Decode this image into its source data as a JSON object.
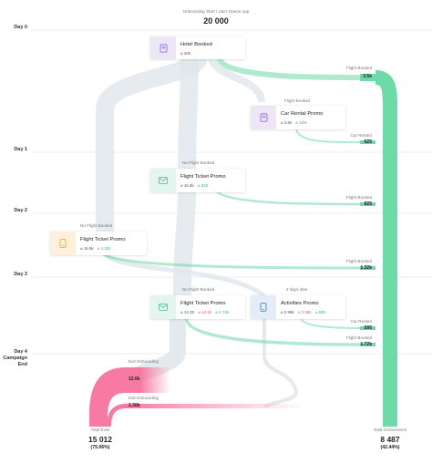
{
  "header": {
    "caption": "Onboarding Start / User Opens App",
    "total": "20 000"
  },
  "days": [
    "Day 0",
    "Day 1",
    "Day 2",
    "Day 3",
    "Day 4",
    "Campaign",
    "End"
  ],
  "cards": {
    "hotel": {
      "title": "Hotel Booked",
      "stat1": "⌀ 20k",
      "icon": "hotel-icon",
      "color": "#ece6f7",
      "stroke": "#8a73c9"
    },
    "car": {
      "title": "Car Rental Promo",
      "stat1": "⌀ 3.5k",
      "stat2": "⌀ 12%",
      "icon": "car-icon",
      "color": "#ece6f7",
      "stroke": "#8a73c9"
    },
    "flight1": {
      "title": "Flight Ticket Promo",
      "stat1": "⌀ 16.5k",
      "stat2": "⌀ 825",
      "icon": "mail-icon",
      "color": "#e3f5ee",
      "stroke": "#4ab88a"
    },
    "flight2": {
      "title": "Flight Ticket Promo",
      "stat1": "⌀ 16.5k",
      "stat2": "⌀ 1.32k",
      "icon": "phone-icon",
      "color": "#fdf1dc",
      "stroke": "#e9a84c"
    },
    "flight3": {
      "title": "Flight Ticket Promo",
      "stat1": "⌀ 14.3S",
      "stat2": "⌀ 12.6k",
      "stat3": "⌀ 1.72k",
      "icon": "mail-icon",
      "color": "#e3f5ee",
      "stroke": "#4ab88a"
    },
    "activities": {
      "title": "Activities Promo",
      "stat1": "⌀ 2.96k",
      "stat2": "⌀ 2.36k",
      "stat3": "⌀ 595",
      "icon": "phone-icon",
      "color": "#e4ecf8",
      "stroke": "#5a86cf"
    }
  },
  "captions": {
    "car_above": "Flight Booked",
    "flight1_above": "No Flight Booked",
    "flight2_above": "No Flight Booked",
    "flight3_above": "No Flight Booked",
    "activities_above": "2 days later"
  },
  "conversions": [
    {
      "label": "Flight Booked",
      "value": "3.5k"
    },
    {
      "label": "Car Rented",
      "value": "525"
    },
    {
      "label": "Flight Booked",
      "value": "825"
    },
    {
      "label": "Flight Booked",
      "value": "1.32k"
    },
    {
      "label": "Car Rented",
      "value": "595"
    },
    {
      "label": "Flight Booked",
      "value": "1.72k"
    }
  ],
  "exits": [
    {
      "label": "Exit Onboarding",
      "value": "12.6k"
    },
    {
      "label": "Exit Onboarding",
      "value": "2.36k"
    }
  ],
  "totals": {
    "exits_label": "Total Exits",
    "exits_value": "15 012",
    "exits_pct": "(75.06%)",
    "conv_label": "Total Conversions",
    "conv_value": "8 487",
    "conv_pct": "(42.44%)"
  },
  "colors": {
    "gray_flow": "#e1e7ec",
    "green_flow": "#6ed9a9",
    "pink_flow": "#f77aa2",
    "grid": "#dcdcdc"
  }
}
